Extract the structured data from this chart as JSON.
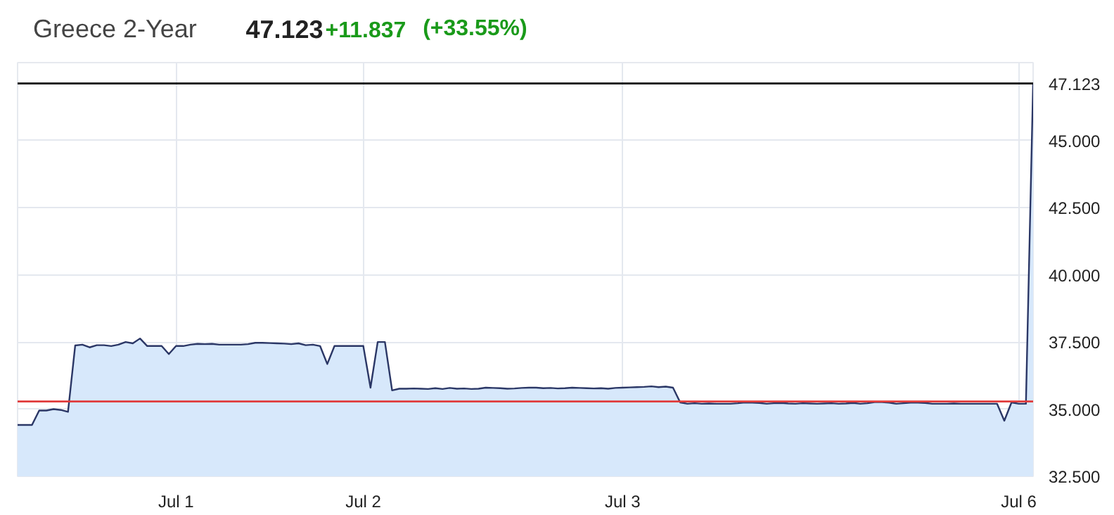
{
  "chart_data": {
    "type": "area",
    "title": "Greece 2-Year",
    "annotations": [
      "47.123",
      "+11.837",
      "(+33.55%)"
    ],
    "categories": [
      null,
      null,
      null,
      null,
      null,
      null,
      null,
      null,
      null,
      null,
      null,
      null,
      null,
      null,
      null,
      null,
      null,
      null,
      null,
      null,
      null,
      null,
      "Jul 1",
      null,
      null,
      null,
      null,
      null,
      null,
      null,
      null,
      null,
      null,
      null,
      null,
      null,
      null,
      null,
      null,
      null,
      null,
      null,
      null,
      null,
      null,
      null,
      null,
      null,
      "Jul 2",
      null,
      null,
      null,
      null,
      null,
      null,
      null,
      null,
      null,
      null,
      null,
      null,
      null,
      null,
      null,
      null,
      null,
      null,
      null,
      null,
      null,
      null,
      null,
      null,
      null,
      null,
      null,
      null,
      null,
      null,
      null,
      null,
      null,
      null,
      null,
      "Jul 3",
      null,
      null,
      null,
      null,
      null,
      null,
      null,
      null,
      null,
      null,
      null,
      null,
      null,
      null,
      null,
      null,
      null,
      null,
      null,
      null,
      null,
      null,
      null,
      null,
      null,
      null,
      null,
      null,
      null,
      null,
      null,
      null,
      null,
      null,
      null,
      null,
      null,
      null,
      null,
      null,
      null,
      null,
      null,
      null,
      null,
      null,
      null,
      null,
      null,
      null,
      null,
      null,
      null,
      null,
      "Jul 6",
      null,
      null
    ],
    "series": [
      {
        "color": "#2b3766",
        "values": [
          34.41,
          34.41,
          34.41,
          34.95,
          34.95,
          35.0,
          34.97,
          34.9,
          37.37,
          37.4,
          37.3,
          37.38,
          37.38,
          37.35,
          37.4,
          37.5,
          37.45,
          37.63,
          37.35,
          37.35,
          37.35,
          37.05,
          37.35,
          37.35,
          37.4,
          37.43,
          37.42,
          37.43,
          37.4,
          37.4,
          37.4,
          37.4,
          37.42,
          37.47,
          37.47,
          37.46,
          37.45,
          37.44,
          37.42,
          37.45,
          37.38,
          37.4,
          37.35,
          36.68,
          37.35,
          37.35,
          37.35,
          37.35,
          37.35,
          35.8,
          37.5,
          37.5,
          35.7,
          35.76,
          35.76,
          35.77,
          35.76,
          35.75,
          35.78,
          35.75,
          35.79,
          35.76,
          35.77,
          35.75,
          35.76,
          35.8,
          35.79,
          35.78,
          35.76,
          35.77,
          35.79,
          35.8,
          35.8,
          35.78,
          35.79,
          35.77,
          35.78,
          35.8,
          35.79,
          35.78,
          35.77,
          35.78,
          35.76,
          35.79,
          35.8,
          35.81,
          35.82,
          35.83,
          35.85,
          35.82,
          35.84,
          35.8,
          35.25,
          35.2,
          35.22,
          35.2,
          35.21,
          35.2,
          35.2,
          35.2,
          35.22,
          35.25,
          35.24,
          35.23,
          35.2,
          35.22,
          35.23,
          35.21,
          35.2,
          35.22,
          35.21,
          35.2,
          35.21,
          35.22,
          35.2,
          35.21,
          35.23,
          35.2,
          35.22,
          35.26,
          35.26,
          35.24,
          35.2,
          35.22,
          35.24,
          35.24,
          35.23,
          35.2,
          35.2,
          35.2,
          35.21,
          35.2,
          35.2,
          35.2,
          35.2,
          35.2,
          35.2,
          34.57,
          35.25,
          35.2,
          35.2,
          47.123
        ]
      }
    ],
    "ylim": [
      32.5,
      47.9
    ],
    "yticks": [
      {
        "value": 32.5,
        "label": "32.500"
      },
      {
        "value": 35,
        "label": "35.000"
      },
      {
        "value": 37.5,
        "label": "37.500"
      },
      {
        "value": 40,
        "label": "40.000"
      },
      {
        "value": 42.5,
        "label": "42.500"
      },
      {
        "value": 45,
        "label": "45.000"
      }
    ],
    "ref_lines": [
      {
        "axis": "y",
        "value": 47.123,
        "label": "47.123",
        "color": "#000000"
      },
      {
        "axis": "y",
        "value": 35.286,
        "color": "#e03b3b"
      }
    ],
    "grid": true
  }
}
